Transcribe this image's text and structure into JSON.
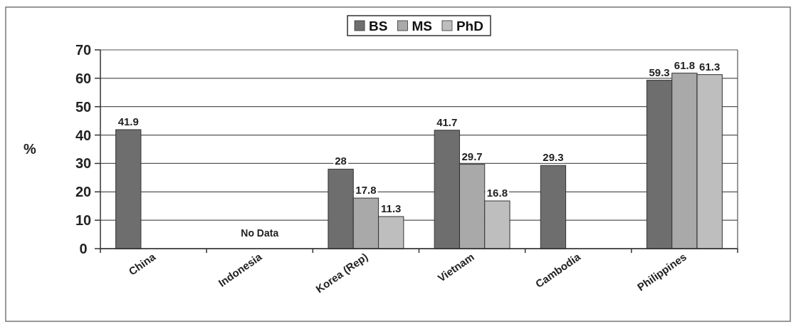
{
  "chart_data": {
    "type": "bar",
    "categories": [
      "China",
      "Indonesia",
      "Korea (Rep)",
      "Vietnam",
      "Cambodia",
      "Philippines"
    ],
    "series": [
      {
        "name": "BS",
        "color": "#6e6e6e",
        "values": [
          41.9,
          null,
          28,
          41.7,
          29.3,
          59.3
        ]
      },
      {
        "name": "MS",
        "color": "#a9a9a9",
        "values": [
          null,
          null,
          17.8,
          29.7,
          null,
          61.8
        ]
      },
      {
        "name": "PhD",
        "color": "#bebebe",
        "values": [
          null,
          null,
          11.3,
          16.8,
          null,
          61.3
        ]
      }
    ],
    "ylabel": "%",
    "ylim": [
      0,
      70
    ],
    "yticks": [
      0,
      10,
      20,
      30,
      40,
      50,
      60,
      70
    ],
    "grid": "y",
    "legend": "top",
    "data_labels": true,
    "annotations": [
      "No Data"
    ]
  }
}
